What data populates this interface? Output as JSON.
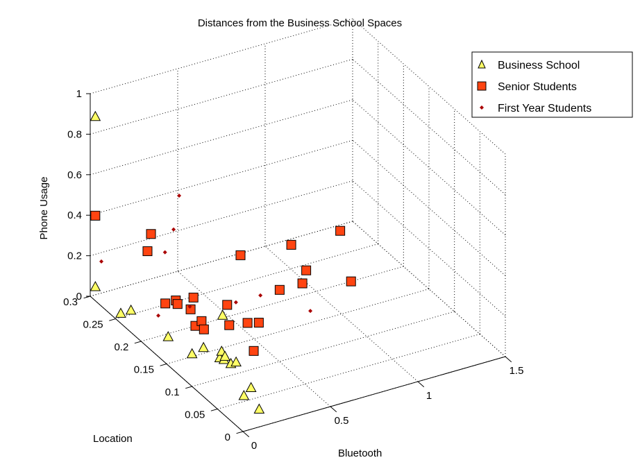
{
  "chart_data": {
    "type": "scatter",
    "title": "Distances from the Business School Spaces",
    "xlabel": "Bluetooth",
    "ylabel": "Location",
    "zlabel": "Phone Usage",
    "xlim": [
      0,
      1.5
    ],
    "ylim": [
      0,
      0.3
    ],
    "zlim": [
      0,
      1
    ],
    "xticks": [
      "0",
      "0.5",
      "1",
      "1.5"
    ],
    "yticks": [
      "0",
      "0.05",
      "0.1",
      "0.15",
      "0.2",
      "0.25",
      "0.3"
    ],
    "zticks": [
      "0",
      "0.2",
      "0.4",
      "0.6",
      "0.8",
      "1"
    ],
    "grid": true,
    "legend_position": "top-right",
    "series": [
      {
        "name": "Business School",
        "marker": "triangle",
        "color": "#ffff66",
        "points": [
          [
            0.0,
            0.29,
            0.91
          ],
          [
            0.0,
            0.29,
            0.07
          ],
          [
            0.0,
            0.22,
            0.11
          ],
          [
            0.0,
            0.24,
            0.05
          ],
          [
            0.14,
            0.195,
            0.0
          ],
          [
            0.48,
            0.205,
            0.0
          ],
          [
            0.16,
            0.155,
            0.0
          ],
          [
            0.24,
            0.16,
            0.0
          ],
          [
            0.26,
            0.135,
            0.0
          ],
          [
            0.27,
            0.13,
            0.0
          ],
          [
            0.3,
            0.145,
            0.0
          ],
          [
            0.28,
            0.12,
            0.0
          ],
          [
            0.31,
            0.12,
            0.0
          ],
          [
            0.29,
            0.135,
            0.0
          ],
          [
            0.18,
            0.06,
            0.0
          ],
          [
            0.25,
            0.07,
            0.0
          ],
          [
            0.18,
            0.03,
            0.0
          ]
        ]
      },
      {
        "name": "Senior Students",
        "marker": "square",
        "color": "#ff4411",
        "points": [
          [
            0.0,
            0.29,
            0.42
          ],
          [
            0.26,
            0.27,
            0.31
          ],
          [
            0.24,
            0.27,
            0.23
          ],
          [
            0.24,
            0.235,
            0.05
          ],
          [
            0.3,
            0.235,
            0.05
          ],
          [
            0.31,
            0.235,
            0.03
          ],
          [
            0.31,
            0.2,
            0.0
          ],
          [
            0.36,
            0.205,
            0.0
          ],
          [
            0.37,
            0.23,
            0.0
          ],
          [
            0.33,
            0.19,
            0.0
          ],
          [
            0.43,
            0.245,
            0.01
          ],
          [
            0.55,
            0.22,
            0.0
          ],
          [
            0.46,
            0.185,
            0.0
          ],
          [
            0.55,
            0.18,
            0.0
          ],
          [
            0.6,
            0.175,
            0.0
          ],
          [
            0.44,
            0.13,
            0.0
          ],
          [
            0.83,
            0.29,
            0.02
          ],
          [
            0.85,
            0.22,
            0.0
          ],
          [
            1.12,
            0.29,
            0.0
          ],
          [
            0.98,
            0.22,
            0.0
          ],
          [
            1.06,
            0.24,
            0.0
          ],
          [
            1.2,
            0.2,
            0.0
          ],
          [
            1.4,
            0.29,
            0.0
          ]
        ]
      },
      {
        "name": "First Year Students",
        "marker": "dot",
        "color": "#aa0000",
        "points": [
          [
            0.02,
            0.285,
            0.2
          ],
          [
            0.34,
            0.27,
            0.2
          ],
          [
            0.36,
            0.26,
            0.33
          ],
          [
            0.45,
            0.28,
            0.43
          ],
          [
            0.2,
            0.235,
            0.0
          ],
          [
            0.38,
            0.235,
            0.0
          ],
          [
            0.6,
            0.22,
            0.0
          ],
          [
            0.74,
            0.22,
            0.0
          ],
          [
            0.88,
            0.17,
            0.0
          ]
        ]
      }
    ]
  }
}
